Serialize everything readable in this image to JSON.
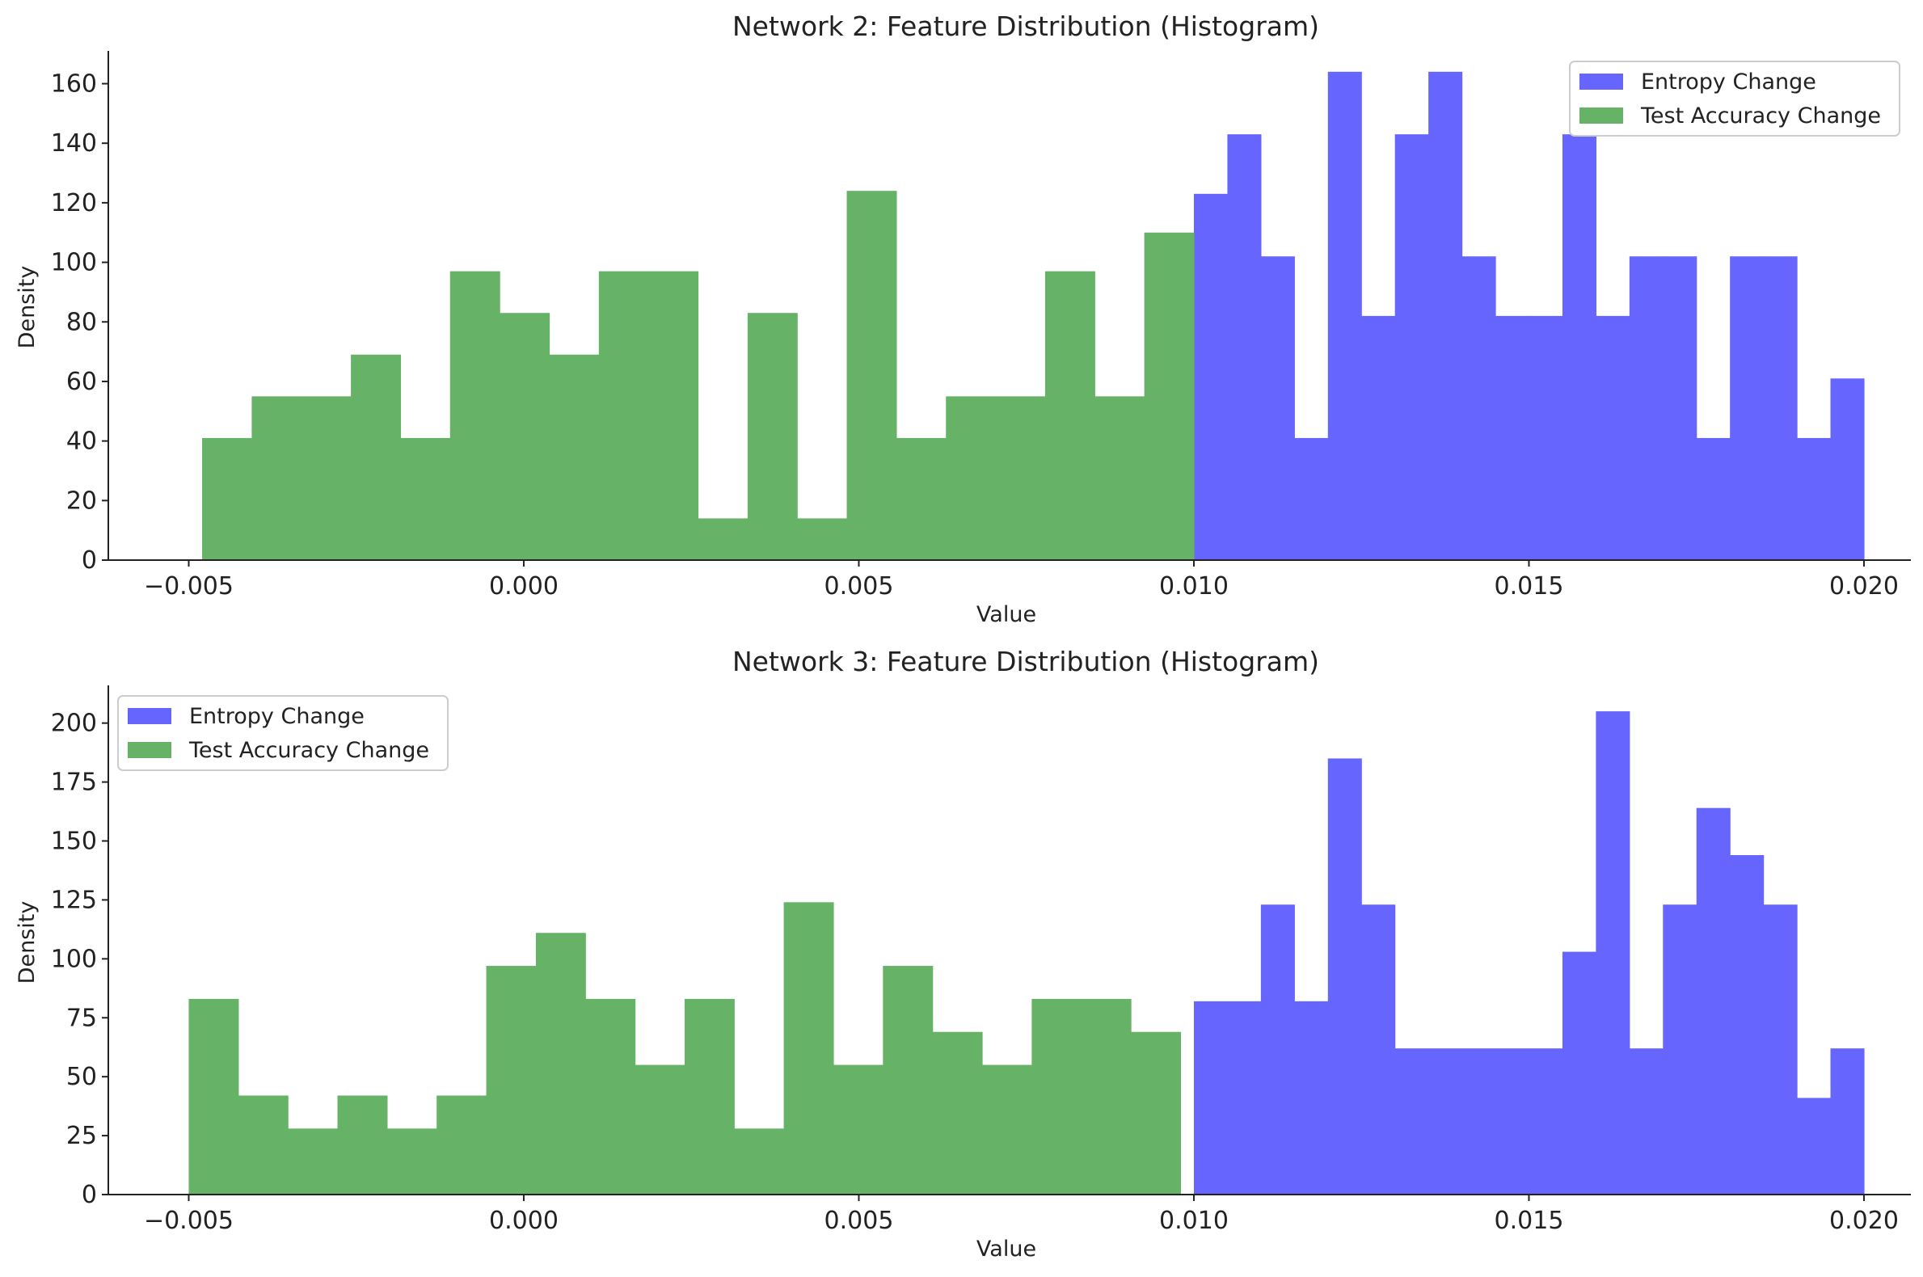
{
  "chart_data": [
    {
      "type": "bar",
      "subtype": "histogram",
      "title": "Network 2: Feature Distribution (Histogram)",
      "xlabel": "Value",
      "ylabel": "Density",
      "xlim": [
        -0.0062,
        0.0207
      ],
      "ylim": [
        0,
        171
      ],
      "xticks": [
        -0.005,
        0.0,
        0.005,
        0.01,
        0.015,
        0.02
      ],
      "xtick_labels": [
        "−0.005",
        "0.000",
        "0.005",
        "0.010",
        "0.015",
        "0.020"
      ],
      "yticks": [
        0,
        20,
        40,
        60,
        80,
        100,
        120,
        140,
        160
      ],
      "ytick_labels": [
        "0",
        "20",
        "40",
        "60",
        "80",
        "100",
        "120",
        "140",
        "160"
      ],
      "legend": {
        "position": "top-right"
      },
      "grid": false,
      "series": [
        {
          "name": "Entropy Change",
          "color": "#6666ff",
          "bin_start": 0.01,
          "bin_end": 0.02,
          "values": [
            123,
            143,
            102,
            41,
            164,
            82,
            143,
            164,
            102,
            82,
            82,
            143,
            82,
            102,
            102,
            41,
            102,
            102,
            41,
            61
          ]
        },
        {
          "name": "Test Accuracy Change",
          "color": "#66b266",
          "bin_start": -0.0048,
          "bin_end": 0.01,
          "values": [
            41,
            55,
            55,
            69,
            41,
            97,
            83,
            69,
            97,
            97,
            14,
            83,
            14,
            124,
            41,
            55,
            55,
            97,
            55,
            110
          ]
        }
      ]
    },
    {
      "type": "bar",
      "subtype": "histogram",
      "title": "Network 3: Feature Distribution (Histogram)",
      "xlabel": "Value",
      "ylabel": "Density",
      "xlim": [
        -0.0062,
        0.0207
      ],
      "ylim": [
        0,
        216
      ],
      "xticks": [
        -0.005,
        0.0,
        0.005,
        0.01,
        0.015,
        0.02
      ],
      "xtick_labels": [
        "−0.005",
        "0.000",
        "0.005",
        "0.010",
        "0.015",
        "0.020"
      ],
      "yticks": [
        0,
        25,
        50,
        75,
        100,
        125,
        150,
        175,
        200
      ],
      "ytick_labels": [
        "0",
        "25",
        "50",
        "75",
        "100",
        "125",
        "150",
        "175",
        "200"
      ],
      "legend": {
        "position": "top-left"
      },
      "grid": false,
      "series": [
        {
          "name": "Entropy Change",
          "color": "#6666ff",
          "bin_start": 0.01,
          "bin_end": 0.02,
          "values": [
            82,
            82,
            123,
            82,
            185,
            123,
            62,
            62,
            62,
            62,
            62,
            103,
            205,
            62,
            123,
            164,
            144,
            123,
            41,
            62
          ]
        },
        {
          "name": "Test Accuracy Change",
          "color": "#66b266",
          "bin_start": -0.005,
          "bin_end": 0.0098,
          "values": [
            83,
            42,
            28,
            42,
            28,
            42,
            97,
            111,
            83,
            55,
            83,
            28,
            124,
            55,
            97,
            69,
            55,
            83,
            83,
            69
          ]
        }
      ]
    }
  ]
}
